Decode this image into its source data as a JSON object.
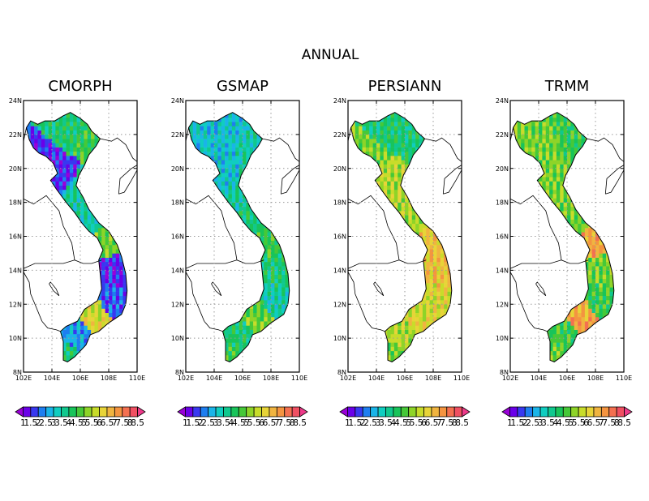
{
  "figure": {
    "title": "ANNUAL"
  },
  "chart_data": [
    {
      "type": "heatmap",
      "title": "CMORPH",
      "xlabel": "",
      "ylabel": "",
      "xlim": [
        102,
        110
      ],
      "ylim": [
        8,
        24
      ],
      "x_ticks": [
        "102E",
        "104E",
        "106E",
        "108E",
        "110E"
      ],
      "y_ticks": [
        "8N",
        "10N",
        "12N",
        "14N",
        "16N",
        "18N",
        "20N",
        "22N",
        "24N"
      ],
      "grid": true,
      "regions": [
        {
          "lon": 104.5,
          "lat": 22.0,
          "value": 4.5
        },
        {
          "lon": 105.5,
          "lat": 22.5,
          "value": 4.5
        },
        {
          "lon": 106.5,
          "lat": 22.0,
          "value": 5.0
        },
        {
          "lon": 103.8,
          "lat": 21.0,
          "value": 2.0
        },
        {
          "lon": 104.5,
          "lat": 19.5,
          "value": 2.0
        },
        {
          "lon": 105.8,
          "lat": 18.5,
          "value": 4.0
        },
        {
          "lon": 106.8,
          "lat": 17.0,
          "value": 4.0
        },
        {
          "lon": 107.8,
          "lat": 15.8,
          "value": 5.5
        },
        {
          "lon": 108.2,
          "lat": 13.8,
          "value": 2.0
        },
        {
          "lon": 108.0,
          "lat": 12.5,
          "value": 2.5
        },
        {
          "lon": 106.9,
          "lat": 11.6,
          "value": 6.5
        },
        {
          "lon": 105.5,
          "lat": 10.2,
          "value": 3.0
        },
        {
          "lon": 105.0,
          "lat": 9.0,
          "value": 4.5
        }
      ]
    },
    {
      "type": "heatmap",
      "title": "GSMAP",
      "xlabel": "",
      "ylabel": "",
      "xlim": [
        102,
        110
      ],
      "ylim": [
        8,
        24
      ],
      "x_ticks": [
        "102E",
        "104E",
        "106E",
        "108E",
        "110E"
      ],
      "y_ticks": [
        "8N",
        "10N",
        "12N",
        "14N",
        "16N",
        "18N",
        "20N",
        "22N",
        "24N"
      ],
      "grid": true,
      "regions": [
        {
          "lon": 104.5,
          "lat": 22.0,
          "value": 3.5
        },
        {
          "lon": 105.5,
          "lat": 22.5,
          "value": 3.5
        },
        {
          "lon": 106.5,
          "lat": 22.0,
          "value": 4.0
        },
        {
          "lon": 103.8,
          "lat": 21.0,
          "value": 3.5
        },
        {
          "lon": 104.5,
          "lat": 19.5,
          "value": 3.5
        },
        {
          "lon": 105.8,
          "lat": 18.5,
          "value": 4.0
        },
        {
          "lon": 106.8,
          "lat": 17.0,
          "value": 4.5
        },
        {
          "lon": 107.8,
          "lat": 15.8,
          "value": 5.0
        },
        {
          "lon": 108.2,
          "lat": 13.8,
          "value": 4.5
        },
        {
          "lon": 108.0,
          "lat": 12.5,
          "value": 4.0
        },
        {
          "lon": 106.9,
          "lat": 11.6,
          "value": 5.5
        },
        {
          "lon": 105.5,
          "lat": 10.2,
          "value": 4.5
        },
        {
          "lon": 105.0,
          "lat": 9.0,
          "value": 5.0
        }
      ]
    },
    {
      "type": "heatmap",
      "title": "PERSIANN",
      "xlabel": "",
      "ylabel": "",
      "xlim": [
        102,
        110
      ],
      "ylim": [
        8,
        24
      ],
      "x_ticks": [
        "102E",
        "104E",
        "106E",
        "108E",
        "110E"
      ],
      "y_ticks": [
        "8N",
        "10N",
        "12N",
        "14N",
        "16N",
        "18N",
        "20N",
        "22N",
        "24N"
      ],
      "grid": true,
      "regions": [
        {
          "lon": 104.5,
          "lat": 22.0,
          "value": 4.5
        },
        {
          "lon": 105.5,
          "lat": 22.5,
          "value": 4.5
        },
        {
          "lon": 106.5,
          "lat": 22.0,
          "value": 4.5
        },
        {
          "lon": 103.8,
          "lat": 21.0,
          "value": 5.5
        },
        {
          "lon": 104.5,
          "lat": 19.5,
          "value": 6.0
        },
        {
          "lon": 105.8,
          "lat": 18.5,
          "value": 6.0
        },
        {
          "lon": 106.8,
          "lat": 17.0,
          "value": 6.0
        },
        {
          "lon": 107.8,
          "lat": 15.8,
          "value": 7.0
        },
        {
          "lon": 108.2,
          "lat": 13.8,
          "value": 7.0
        },
        {
          "lon": 108.0,
          "lat": 12.5,
          "value": 6.5
        },
        {
          "lon": 106.9,
          "lat": 11.6,
          "value": 6.5
        },
        {
          "lon": 105.5,
          "lat": 10.2,
          "value": 6.0
        },
        {
          "lon": 105.0,
          "lat": 9.0,
          "value": 5.5
        }
      ]
    },
    {
      "type": "heatmap",
      "title": "TRMM",
      "xlabel": "",
      "ylabel": "",
      "xlim": [
        102,
        110
      ],
      "ylim": [
        8,
        24
      ],
      "x_ticks": [
        "102E",
        "104E",
        "106E",
        "108E",
        "110E"
      ],
      "y_ticks": [
        "8N",
        "10N",
        "12N",
        "14N",
        "16N",
        "18N",
        "20N",
        "22N",
        "24N"
      ],
      "grid": true,
      "regions": [
        {
          "lon": 104.5,
          "lat": 22.0,
          "value": 5.5
        },
        {
          "lon": 105.5,
          "lat": 22.5,
          "value": 5.0
        },
        {
          "lon": 106.5,
          "lat": 22.0,
          "value": 5.0
        },
        {
          "lon": 103.8,
          "lat": 21.0,
          "value": 5.5
        },
        {
          "lon": 104.5,
          "lat": 19.5,
          "value": 5.5
        },
        {
          "lon": 105.8,
          "lat": 18.5,
          "value": 5.5
        },
        {
          "lon": 106.8,
          "lat": 17.0,
          "value": 5.5
        },
        {
          "lon": 107.8,
          "lat": 15.8,
          "value": 7.5
        },
        {
          "lon": 108.2,
          "lat": 13.8,
          "value": 5.5
        },
        {
          "lon": 108.0,
          "lat": 12.5,
          "value": 5.0
        },
        {
          "lon": 106.9,
          "lat": 11.6,
          "value": 7.5
        },
        {
          "lon": 105.5,
          "lat": 10.2,
          "value": 5.0
        },
        {
          "lon": 105.0,
          "lat": 9.0,
          "value": 5.5
        }
      ]
    }
  ],
  "colorbar": {
    "levels": [
      "1",
      "1.5",
      "2",
      "2.5",
      "3",
      "3.5",
      "4",
      "4.5",
      "5",
      "5.5",
      "6",
      "6.5",
      "7",
      "7.5",
      "8",
      "8.5"
    ],
    "colors": [
      "#9a00d8",
      "#6a00e8",
      "#3838f0",
      "#1e7ef0",
      "#1ab4e8",
      "#10cdc0",
      "#10c88e",
      "#18c45a",
      "#46c838",
      "#8ed428",
      "#c8dc2a",
      "#e8d438",
      "#f0b440",
      "#f49440",
      "#f47050",
      "#f05062",
      "#ee3a8a"
    ]
  }
}
